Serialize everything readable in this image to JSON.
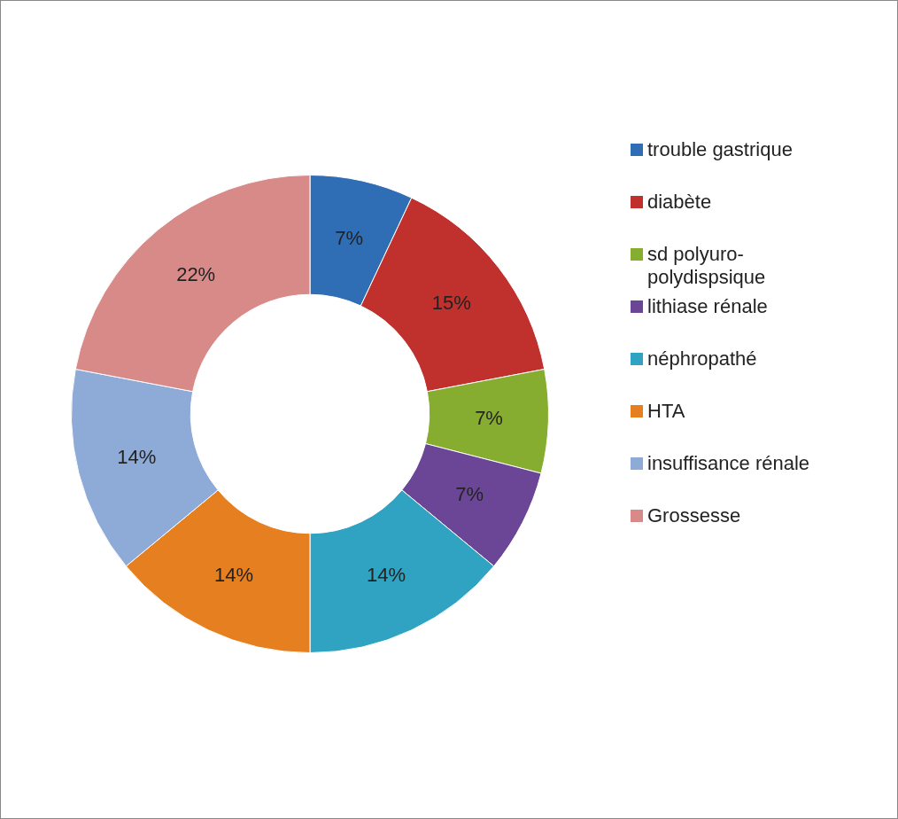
{
  "chart_data": {
    "type": "donut",
    "categories": [
      "trouble gastrique",
      "diabète",
      "sd polyuro-polydispsique",
      "lithiase rénale",
      "néphropathé",
      "HTA",
      "insuffisance rénale",
      "Grossesse"
    ],
    "values": [
      7,
      15,
      7,
      7,
      14,
      14,
      14,
      22
    ],
    "colors": [
      "#2f6db5",
      "#c0302d",
      "#86ad2f",
      "#6b4697",
      "#2fa3c1",
      "#e57f1f",
      "#8eaad7",
      "#d88a89"
    ],
    "value_labels": [
      "7%",
      "15%",
      "7%",
      "7%",
      "14%",
      "14%",
      "14%",
      "22%"
    ],
    "legend": "right"
  }
}
